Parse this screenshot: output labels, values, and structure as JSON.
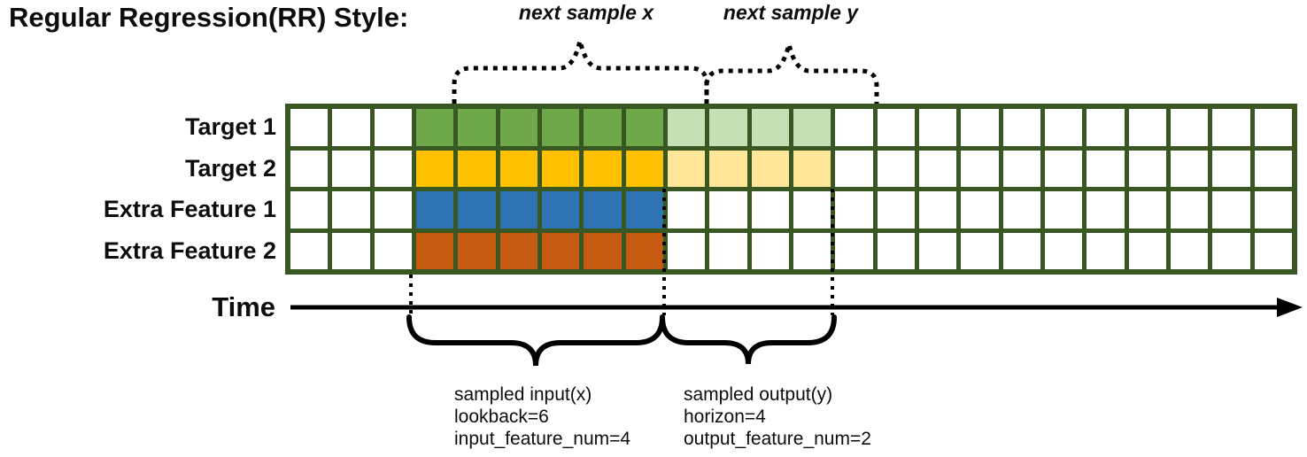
{
  "title": "Regular Regression(RR) Style:",
  "top_annotations": {
    "next_sample_x": "next sample x",
    "next_sample_y": "next sample y"
  },
  "rows": [
    {
      "label": "Target 1",
      "input_color": "green",
      "output_color": "light_green"
    },
    {
      "label": "Target 2",
      "input_color": "gold",
      "output_color": "light_gold"
    },
    {
      "label": "Extra Feature 1",
      "input_color": "blue",
      "output_color": null
    },
    {
      "label": "Extra Feature 2",
      "input_color": "orange",
      "output_color": null
    }
  ],
  "grid": {
    "total_columns": 24,
    "row_count": 4,
    "lead_empty_columns": 3,
    "input_columns": 6,
    "output_columns": 4
  },
  "time_axis": {
    "label": "Time"
  },
  "sampled_input": {
    "lines": [
      "sampled input(x)",
      "lookback=6",
      "input_feature_num=4"
    ]
  },
  "sampled_output": {
    "lines": [
      "sampled output(y)",
      "horizon=4",
      "output_feature_num=2"
    ]
  },
  "colors": {
    "grid_line": "#385723",
    "green": "#6FA84B",
    "light_green": "#C5E0B4",
    "gold": "#FFC000",
    "light_gold": "#FFE699",
    "blue": "#2E74B5",
    "orange": "#C55A11",
    "white": "#FFFFFF"
  }
}
